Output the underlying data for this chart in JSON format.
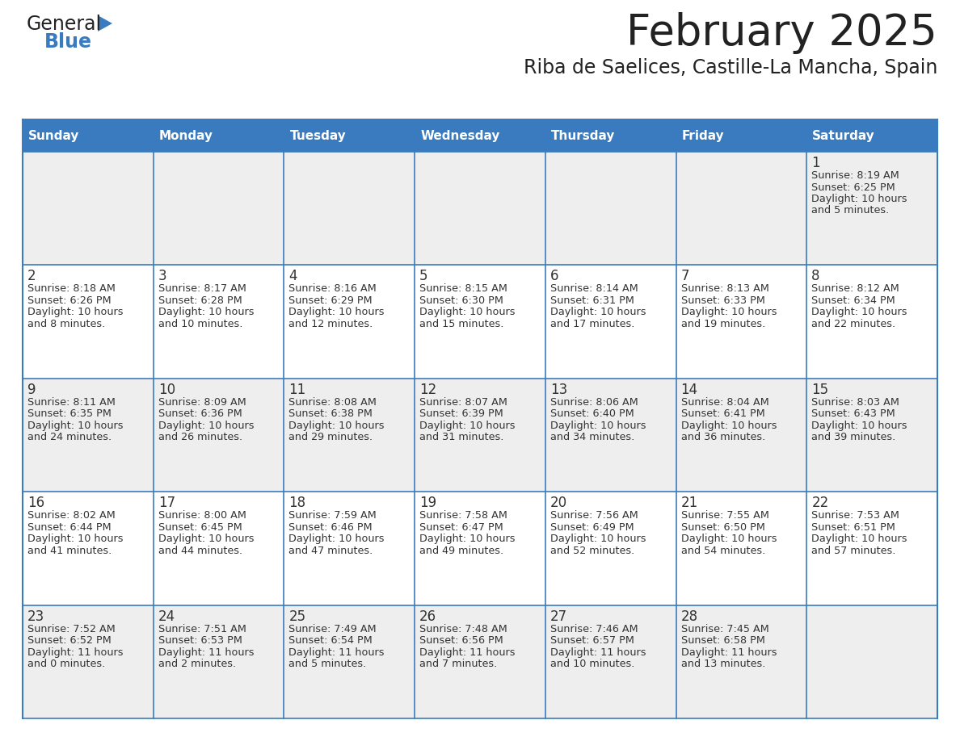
{
  "title": "February 2025",
  "subtitle": "Riba de Saelices, Castille-La Mancha, Spain",
  "header_bg": "#3a7bbf",
  "header_text_color": "#ffffff",
  "cell_bg": "#ffffff",
  "cell_alt_bg": "#eeeeee",
  "border_color": "#3a7bbf",
  "day_number_color": "#333333",
  "info_text_color": "#333333",
  "title_color": "#222222",
  "days_of_week": [
    "Sunday",
    "Monday",
    "Tuesday",
    "Wednesday",
    "Thursday",
    "Friday",
    "Saturday"
  ],
  "weeks": [
    [
      null,
      null,
      null,
      null,
      null,
      null,
      1
    ],
    [
      2,
      3,
      4,
      5,
      6,
      7,
      8
    ],
    [
      9,
      10,
      11,
      12,
      13,
      14,
      15
    ],
    [
      16,
      17,
      18,
      19,
      20,
      21,
      22
    ],
    [
      23,
      24,
      25,
      26,
      27,
      28,
      null
    ]
  ],
  "week_bg": [
    true,
    false,
    true,
    false,
    true
  ],
  "cell_data": {
    "1": [
      "Sunrise: 8:19 AM",
      "Sunset: 6:25 PM",
      "Daylight: 10 hours",
      "and 5 minutes."
    ],
    "2": [
      "Sunrise: 8:18 AM",
      "Sunset: 6:26 PM",
      "Daylight: 10 hours",
      "and 8 minutes."
    ],
    "3": [
      "Sunrise: 8:17 AM",
      "Sunset: 6:28 PM",
      "Daylight: 10 hours",
      "and 10 minutes."
    ],
    "4": [
      "Sunrise: 8:16 AM",
      "Sunset: 6:29 PM",
      "Daylight: 10 hours",
      "and 12 minutes."
    ],
    "5": [
      "Sunrise: 8:15 AM",
      "Sunset: 6:30 PM",
      "Daylight: 10 hours",
      "and 15 minutes."
    ],
    "6": [
      "Sunrise: 8:14 AM",
      "Sunset: 6:31 PM",
      "Daylight: 10 hours",
      "and 17 minutes."
    ],
    "7": [
      "Sunrise: 8:13 AM",
      "Sunset: 6:33 PM",
      "Daylight: 10 hours",
      "and 19 minutes."
    ],
    "8": [
      "Sunrise: 8:12 AM",
      "Sunset: 6:34 PM",
      "Daylight: 10 hours",
      "and 22 minutes."
    ],
    "9": [
      "Sunrise: 8:11 AM",
      "Sunset: 6:35 PM",
      "Daylight: 10 hours",
      "and 24 minutes."
    ],
    "10": [
      "Sunrise: 8:09 AM",
      "Sunset: 6:36 PM",
      "Daylight: 10 hours",
      "and 26 minutes."
    ],
    "11": [
      "Sunrise: 8:08 AM",
      "Sunset: 6:38 PM",
      "Daylight: 10 hours",
      "and 29 minutes."
    ],
    "12": [
      "Sunrise: 8:07 AM",
      "Sunset: 6:39 PM",
      "Daylight: 10 hours",
      "and 31 minutes."
    ],
    "13": [
      "Sunrise: 8:06 AM",
      "Sunset: 6:40 PM",
      "Daylight: 10 hours",
      "and 34 minutes."
    ],
    "14": [
      "Sunrise: 8:04 AM",
      "Sunset: 6:41 PM",
      "Daylight: 10 hours",
      "and 36 minutes."
    ],
    "15": [
      "Sunrise: 8:03 AM",
      "Sunset: 6:43 PM",
      "Daylight: 10 hours",
      "and 39 minutes."
    ],
    "16": [
      "Sunrise: 8:02 AM",
      "Sunset: 6:44 PM",
      "Daylight: 10 hours",
      "and 41 minutes."
    ],
    "17": [
      "Sunrise: 8:00 AM",
      "Sunset: 6:45 PM",
      "Daylight: 10 hours",
      "and 44 minutes."
    ],
    "18": [
      "Sunrise: 7:59 AM",
      "Sunset: 6:46 PM",
      "Daylight: 10 hours",
      "and 47 minutes."
    ],
    "19": [
      "Sunrise: 7:58 AM",
      "Sunset: 6:47 PM",
      "Daylight: 10 hours",
      "and 49 minutes."
    ],
    "20": [
      "Sunrise: 7:56 AM",
      "Sunset: 6:49 PM",
      "Daylight: 10 hours",
      "and 52 minutes."
    ],
    "21": [
      "Sunrise: 7:55 AM",
      "Sunset: 6:50 PM",
      "Daylight: 10 hours",
      "and 54 minutes."
    ],
    "22": [
      "Sunrise: 7:53 AM",
      "Sunset: 6:51 PM",
      "Daylight: 10 hours",
      "and 57 minutes."
    ],
    "23": [
      "Sunrise: 7:52 AM",
      "Sunset: 6:52 PM",
      "Daylight: 11 hours",
      "and 0 minutes."
    ],
    "24": [
      "Sunrise: 7:51 AM",
      "Sunset: 6:53 PM",
      "Daylight: 11 hours",
      "and 2 minutes."
    ],
    "25": [
      "Sunrise: 7:49 AM",
      "Sunset: 6:54 PM",
      "Daylight: 11 hours",
      "and 5 minutes."
    ],
    "26": [
      "Sunrise: 7:48 AM",
      "Sunset: 6:56 PM",
      "Daylight: 11 hours",
      "and 7 minutes."
    ],
    "27": [
      "Sunrise: 7:46 AM",
      "Sunset: 6:57 PM",
      "Daylight: 11 hours",
      "and 10 minutes."
    ],
    "28": [
      "Sunrise: 7:45 AM",
      "Sunset: 6:58 PM",
      "Daylight: 11 hours",
      "and 13 minutes."
    ]
  },
  "logo_general_color": "#222222",
  "logo_blue_color": "#3a7bbf",
  "fig_width": 11.88,
  "fig_height": 9.18
}
